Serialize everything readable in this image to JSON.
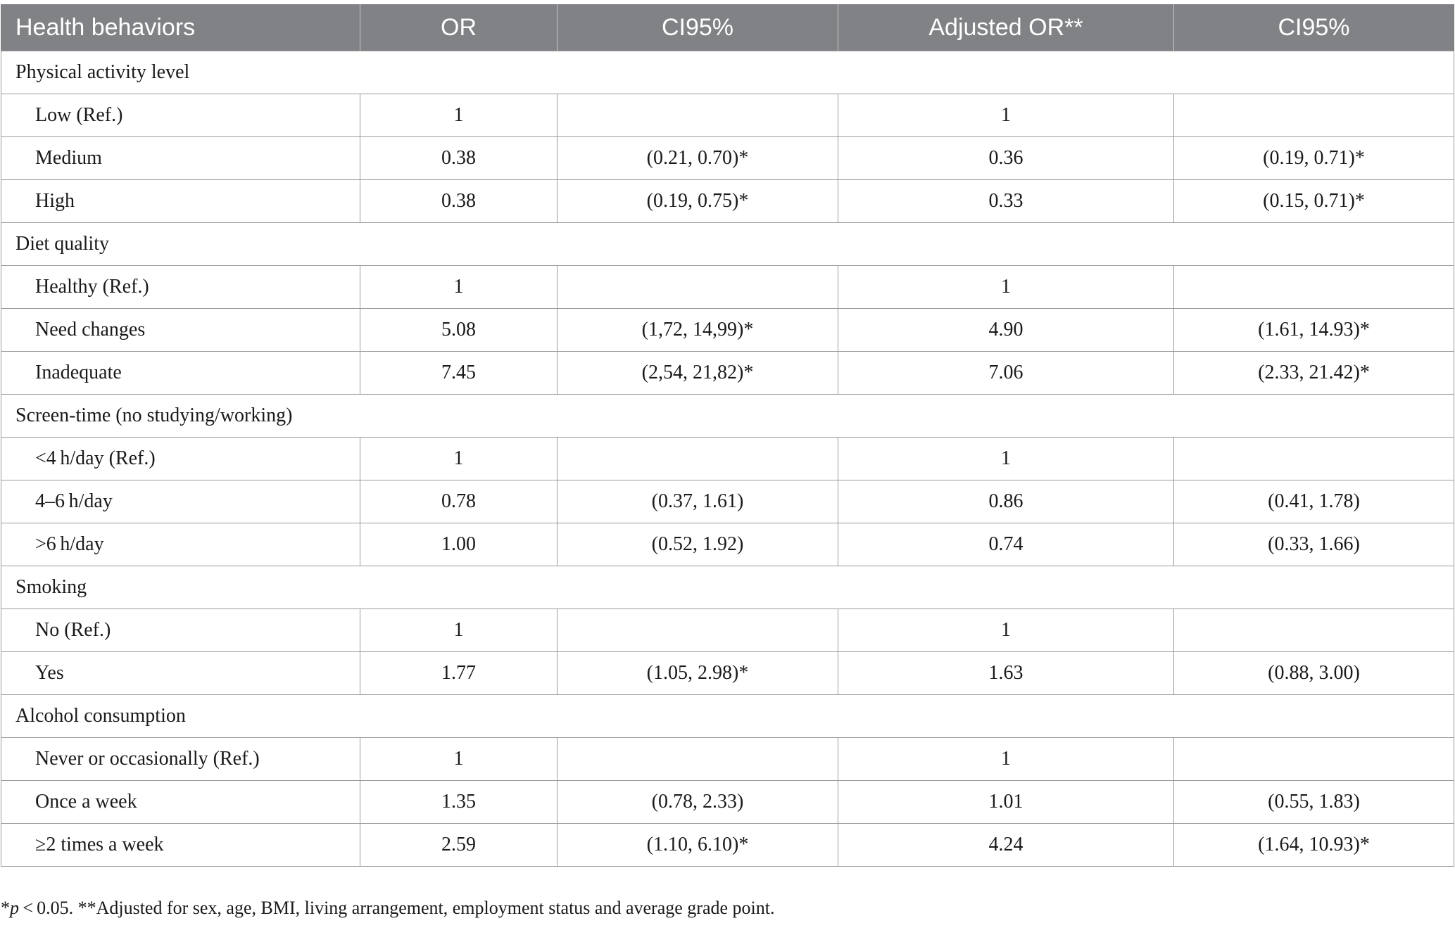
{
  "table": {
    "headers": [
      "Health behaviors",
      "OR",
      "CI95%",
      "Adjusted OR**",
      "CI95%"
    ],
    "groups": [
      {
        "title": "Physical activity level",
        "rows": [
          {
            "label": "Low (Ref.)",
            "or": "1",
            "ci": "",
            "adj_or": "1",
            "adj_ci": ""
          },
          {
            "label": "Medium",
            "or": "0.38",
            "ci": "(0.21, 0.70)*",
            "adj_or": "0.36",
            "adj_ci": "(0.19, 0.71)*"
          },
          {
            "label": "High",
            "or": "0.38",
            "ci": "(0.19, 0.75)*",
            "adj_or": "0.33",
            "adj_ci": "(0.15, 0.71)*"
          }
        ]
      },
      {
        "title": "Diet quality",
        "rows": [
          {
            "label": "Healthy (Ref.)",
            "or": "1",
            "ci": "",
            "adj_or": "1",
            "adj_ci": ""
          },
          {
            "label": "Need changes",
            "or": "5.08",
            "ci": "(1,72, 14,99)*",
            "adj_or": "4.90",
            "adj_ci": "(1.61, 14.93)*"
          },
          {
            "label": "Inadequate",
            "or": "7.45",
            "ci": "(2,54, 21,82)*",
            "adj_or": "7.06",
            "adj_ci": "(2.33, 21.42)*"
          }
        ]
      },
      {
        "title": "Screen-time (no studying/working)",
        "rows": [
          {
            "label": "<4 h/day (Ref.)",
            "or": "1",
            "ci": "",
            "adj_or": "1",
            "adj_ci": ""
          },
          {
            "label": "4–6 h/day",
            "or": "0.78",
            "ci": "(0.37, 1.61)",
            "adj_or": "0.86",
            "adj_ci": "(0.41, 1.78)"
          },
          {
            "label": ">6 h/day",
            "or": "1.00",
            "ci": "(0.52, 1.92)",
            "adj_or": "0.74",
            "adj_ci": "(0.33, 1.66)"
          }
        ]
      },
      {
        "title": "Smoking",
        "rows": [
          {
            "label": "No (Ref.)",
            "or": "1",
            "ci": "",
            "adj_or": "1",
            "adj_ci": ""
          },
          {
            "label": "Yes",
            "or": "1.77",
            "ci": "(1.05, 2.98)*",
            "adj_or": "1.63",
            "adj_ci": "(0.88, 3.00)"
          }
        ]
      },
      {
        "title": "Alcohol consumption",
        "rows": [
          {
            "label": "Never or occasionally (Ref.)",
            "or": "1",
            "ci": "",
            "adj_or": "1",
            "adj_ci": ""
          },
          {
            "label": "Once a week",
            "or": "1.35",
            "ci": "(0.78, 2.33)",
            "adj_or": "1.01",
            "adj_ci": "(0.55, 1.83)"
          },
          {
            "label": "≥2 times a week",
            "or": "2.59",
            "ci": "(1.10, 6.10)*",
            "adj_or": "4.24",
            "adj_ci": "(1.64, 10.93)*"
          }
        ]
      }
    ]
  },
  "footnote": {
    "star": "*",
    "p_symbol": "p",
    "p_text": " < 0.05.",
    "rest": " **Adjusted for sex, age, BMI, living arrangement, employment status and average grade point."
  }
}
